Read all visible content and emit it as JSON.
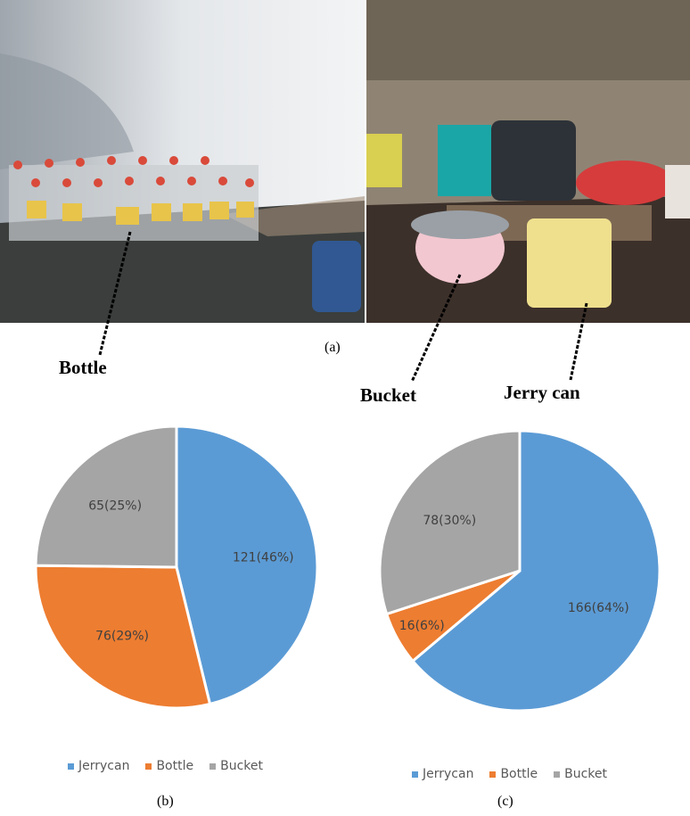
{
  "figure": {
    "panel_a_caption": "(a)",
    "panel_b_caption": "(b)",
    "panel_c_caption": "(c)",
    "photo_labels": {
      "bottle": "Bottle",
      "bucket": "Bucket",
      "jerry_can": "Jerry can"
    }
  },
  "colors": {
    "Jerrycan": "#5b9bd5",
    "Bottle": "#ed7d31",
    "Bucket": "#a5a5a5"
  },
  "chart_data": [
    {
      "type": "pie",
      "panel": "(b)",
      "categories": [
        "Jerrycan",
        "Bottle",
        "Bucket"
      ],
      "values": [
        121,
        76,
        65
      ],
      "labels": [
        "121(46%)",
        "76(29%)",
        "65(25%)"
      ],
      "legend": [
        "Jerrycan",
        "Bottle",
        "Bucket"
      ],
      "legend_position": "bottom"
    },
    {
      "type": "pie",
      "panel": "(c)",
      "categories": [
        "Jerrycan",
        "Bottle",
        "Bucket"
      ],
      "values": [
        166,
        16,
        78
      ],
      "labels": [
        "166(64%)",
        "16(6%)",
        "78(30%)"
      ],
      "legend": [
        "Jerrycan",
        "Bottle",
        "Bucket"
      ],
      "legend_position": "bottom"
    }
  ]
}
